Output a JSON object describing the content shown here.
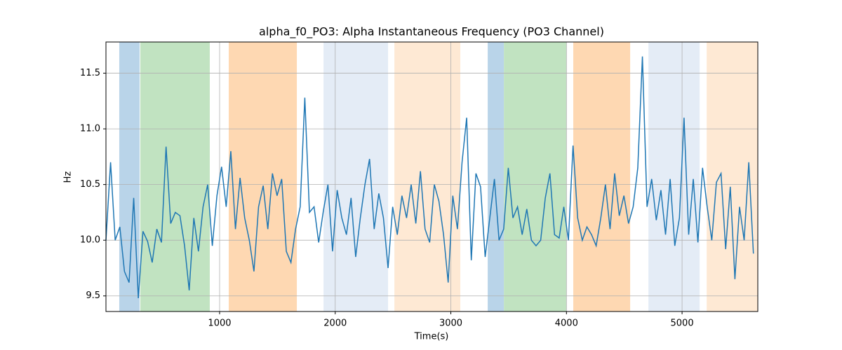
{
  "chart_data": {
    "type": "line",
    "title": "alpha_f0_PO3: Alpha Instantaneous Frequency (PO3 Channel)",
    "x_label": "Time(s)",
    "y_label": "Hz",
    "xlim": [
      17,
      5655
    ],
    "ylim": [
      9.36,
      11.78
    ],
    "xticks": [
      1000,
      2000,
      3000,
      4000,
      5000
    ],
    "yticks": [
      {
        "value": 9.5,
        "label": "9.5"
      },
      {
        "value": 10.0,
        "label": "10.0"
      },
      {
        "value": 10.5,
        "label": "10.5"
      },
      {
        "value": 11.0,
        "label": "11.0"
      },
      {
        "value": 11.5,
        "label": "11.5"
      }
    ],
    "grid": true,
    "spans": [
      {
        "start": 132,
        "end": 308,
        "color": "#b9d4e9"
      },
      {
        "start": 314,
        "end": 915,
        "color": "#c1e3c1"
      },
      {
        "start": 1079,
        "end": 1668,
        "color": "#fed8b2"
      },
      {
        "start": 1899,
        "end": 2457,
        "color": "#e4ecf6"
      },
      {
        "start": 2512,
        "end": 3082,
        "color": "#fee9d4"
      },
      {
        "start": 3319,
        "end": 3459,
        "color": "#b9d4e9"
      },
      {
        "start": 3459,
        "end": 3999,
        "color": "#c1e3c1"
      },
      {
        "start": 4059,
        "end": 4551,
        "color": "#fed8b2"
      },
      {
        "start": 4709,
        "end": 5152,
        "color": "#e4ecf6"
      },
      {
        "start": 5213,
        "end": 5655,
        "color": "#fee9d4"
      }
    ],
    "series": [
      {
        "color": "#1f77b4",
        "x": [
          17,
          57,
          97,
          137,
          177,
          217,
          257,
          297,
          337,
          377,
          417,
          457,
          497,
          537,
          577,
          617,
          657,
          697,
          737,
          777,
          817,
          857,
          897,
          937,
          977,
          1017,
          1057,
          1097,
          1137,
          1177,
          1217,
          1257,
          1297,
          1337,
          1377,
          1417,
          1457,
          1497,
          1537,
          1577,
          1617,
          1657,
          1697,
          1737,
          1777,
          1817,
          1857,
          1897,
          1937,
          1977,
          2017,
          2057,
          2097,
          2137,
          2177,
          2217,
          2257,
          2297,
          2337,
          2377,
          2417,
          2457,
          2497,
          2537,
          2577,
          2617,
          2657,
          2697,
          2737,
          2777,
          2817,
          2857,
          2897,
          2937,
          2977,
          3017,
          3057,
          3097,
          3137,
          3177,
          3217,
          3257,
          3297,
          3337,
          3377,
          3417,
          3457,
          3497,
          3537,
          3577,
          3617,
          3657,
          3697,
          3737,
          3777,
          3817,
          3857,
          3897,
          3937,
          3977,
          4017,
          4057,
          4097,
          4137,
          4177,
          4217,
          4257,
          4297,
          4337,
          4377,
          4417,
          4457,
          4497,
          4537,
          4577,
          4617,
          4657,
          4697,
          4737,
          4777,
          4817,
          4857,
          4897,
          4937,
          4977,
          5017,
          5057,
          5097,
          5137,
          5177,
          5217,
          5257,
          5297,
          5337,
          5377,
          5417,
          5457,
          5497,
          5537,
          5577,
          5617
        ],
        "values": [
          10.0,
          10.7,
          10.0,
          10.12,
          9.72,
          9.62,
          10.38,
          9.48,
          10.08,
          9.99,
          9.8,
          10.1,
          9.98,
          10.84,
          10.15,
          10.25,
          10.22,
          9.95,
          9.55,
          10.2,
          9.9,
          10.3,
          10.5,
          9.95,
          10.4,
          10.66,
          10.3,
          10.8,
          10.1,
          10.56,
          10.2,
          10.0,
          9.72,
          10.3,
          10.49,
          10.1,
          10.6,
          10.4,
          10.55,
          9.9,
          9.8,
          10.1,
          10.3,
          11.28,
          10.25,
          10.3,
          9.98,
          10.26,
          10.5,
          9.9,
          10.45,
          10.2,
          10.05,
          10.38,
          9.85,
          10.2,
          10.5,
          10.73,
          10.1,
          10.42,
          10.2,
          9.75,
          10.3,
          10.05,
          10.4,
          10.2,
          10.5,
          10.15,
          10.62,
          10.1,
          9.98,
          10.5,
          10.35,
          10.05,
          9.62,
          10.4,
          10.1,
          10.7,
          11.1,
          9.82,
          10.6,
          10.48,
          9.85,
          10.2,
          10.55,
          10.0,
          10.1,
          10.65,
          10.2,
          10.3,
          10.05,
          10.28,
          10.0,
          9.95,
          10.0,
          10.38,
          10.6,
          10.05,
          10.02,
          10.3,
          10.0,
          10.85,
          10.2,
          10.0,
          10.12,
          10.05,
          9.95,
          10.2,
          10.5,
          10.1,
          10.6,
          10.22,
          10.4,
          10.15,
          10.3,
          10.65,
          11.65,
          10.3,
          10.55,
          10.18,
          10.45,
          10.05,
          10.55,
          9.95,
          10.2,
          11.1,
          10.05,
          10.55,
          9.98,
          10.65,
          10.3,
          10.0,
          10.52,
          10.6,
          9.92,
          10.48,
          9.65,
          10.3,
          10.0,
          10.7,
          9.88
        ]
      }
    ]
  }
}
